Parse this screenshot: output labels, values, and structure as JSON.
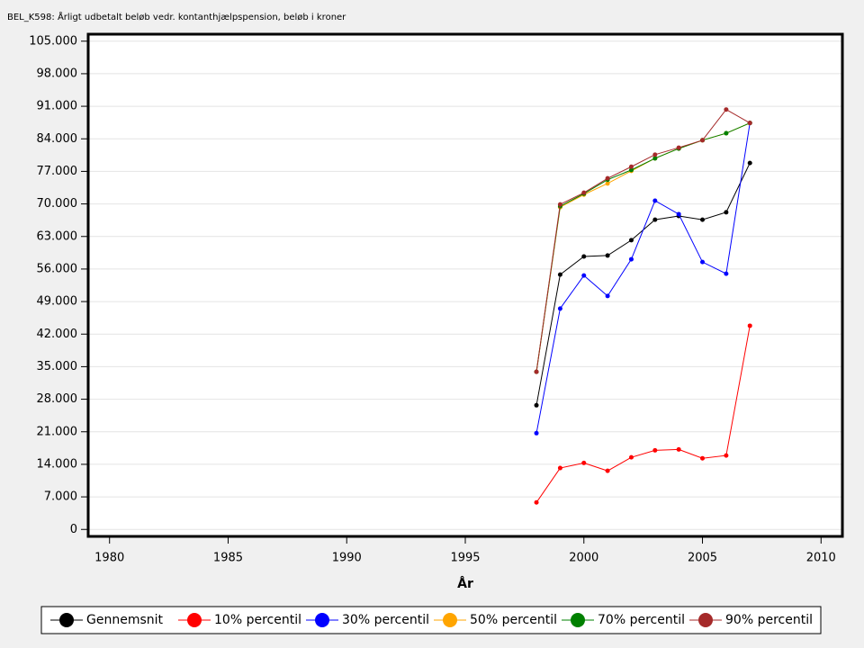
{
  "chart_data": {
    "type": "line",
    "title": "BEL_K598: Årligt udbetalt beløb vedr. kontanthjælpspension, beløb i kroner",
    "x_label": "År",
    "x": [
      1998,
      1999,
      2000,
      2001,
      2002,
      2003,
      2004,
      2005,
      2006,
      2007
    ],
    "series": [
      {
        "name": "Gennemsnit",
        "color": "#000000",
        "values": [
          26700,
          54800,
          58700,
          58900,
          62200,
          66600,
          67400,
          66600,
          68200,
          78800
        ]
      },
      {
        "name": "10% percentil",
        "color": "#ff0000",
        "values": [
          5800,
          13200,
          14300,
          12600,
          15500,
          17000,
          17200,
          15300,
          15900,
          43800
        ]
      },
      {
        "name": "30% percentil",
        "color": "#0000ff",
        "values": [
          20700,
          47500,
          54600,
          50200,
          58100,
          70700,
          67800,
          57500,
          55000,
          87400
        ]
      },
      {
        "name": "50% percentil",
        "color": "#ffa500",
        "values": [
          33900,
          69300,
          72000,
          74400,
          77100,
          79800,
          81900,
          83700,
          85200,
          87400
        ]
      },
      {
        "name": "70% percentil",
        "color": "#008000",
        "values": [
          33900,
          69500,
          72200,
          75200,
          77300,
          79800,
          81900,
          83700,
          85200,
          87400
        ]
      },
      {
        "name": "90% percentil",
        "color": "#a52a2a",
        "values": [
          33900,
          69900,
          72400,
          75500,
          78000,
          80600,
          82100,
          83700,
          90300,
          87400
        ]
      }
    ],
    "xlim": [
      1979.1,
      2010.9
    ],
    "xticks": [
      1980,
      1985,
      1990,
      1995,
      2000,
      2005,
      2010
    ],
    "ylim": [
      -1500,
      106500
    ],
    "yticks": [
      0,
      {
        "value": 7000,
        "label": "7.000"
      },
      {
        "value": 14000,
        "label": "14.000"
      },
      {
        "value": 21000,
        "label": "21.000"
      },
      {
        "value": 28000,
        "label": "28.000"
      },
      {
        "value": 35000,
        "label": "35.000"
      },
      {
        "value": 42000,
        "label": "42.000"
      },
      {
        "value": 49000,
        "label": "49.000"
      },
      {
        "value": 56000,
        "label": "56.000"
      },
      {
        "value": 63000,
        "label": "63.000"
      },
      {
        "value": 70000,
        "label": "70.000"
      },
      {
        "value": 77000,
        "label": "77.000"
      },
      {
        "value": 84000,
        "label": "84.000"
      },
      {
        "value": 91000,
        "label": "91.000"
      },
      {
        "value": 98000,
        "label": "98.000"
      },
      {
        "value": 105000,
        "label": "105.000"
      }
    ],
    "grid": true
  }
}
